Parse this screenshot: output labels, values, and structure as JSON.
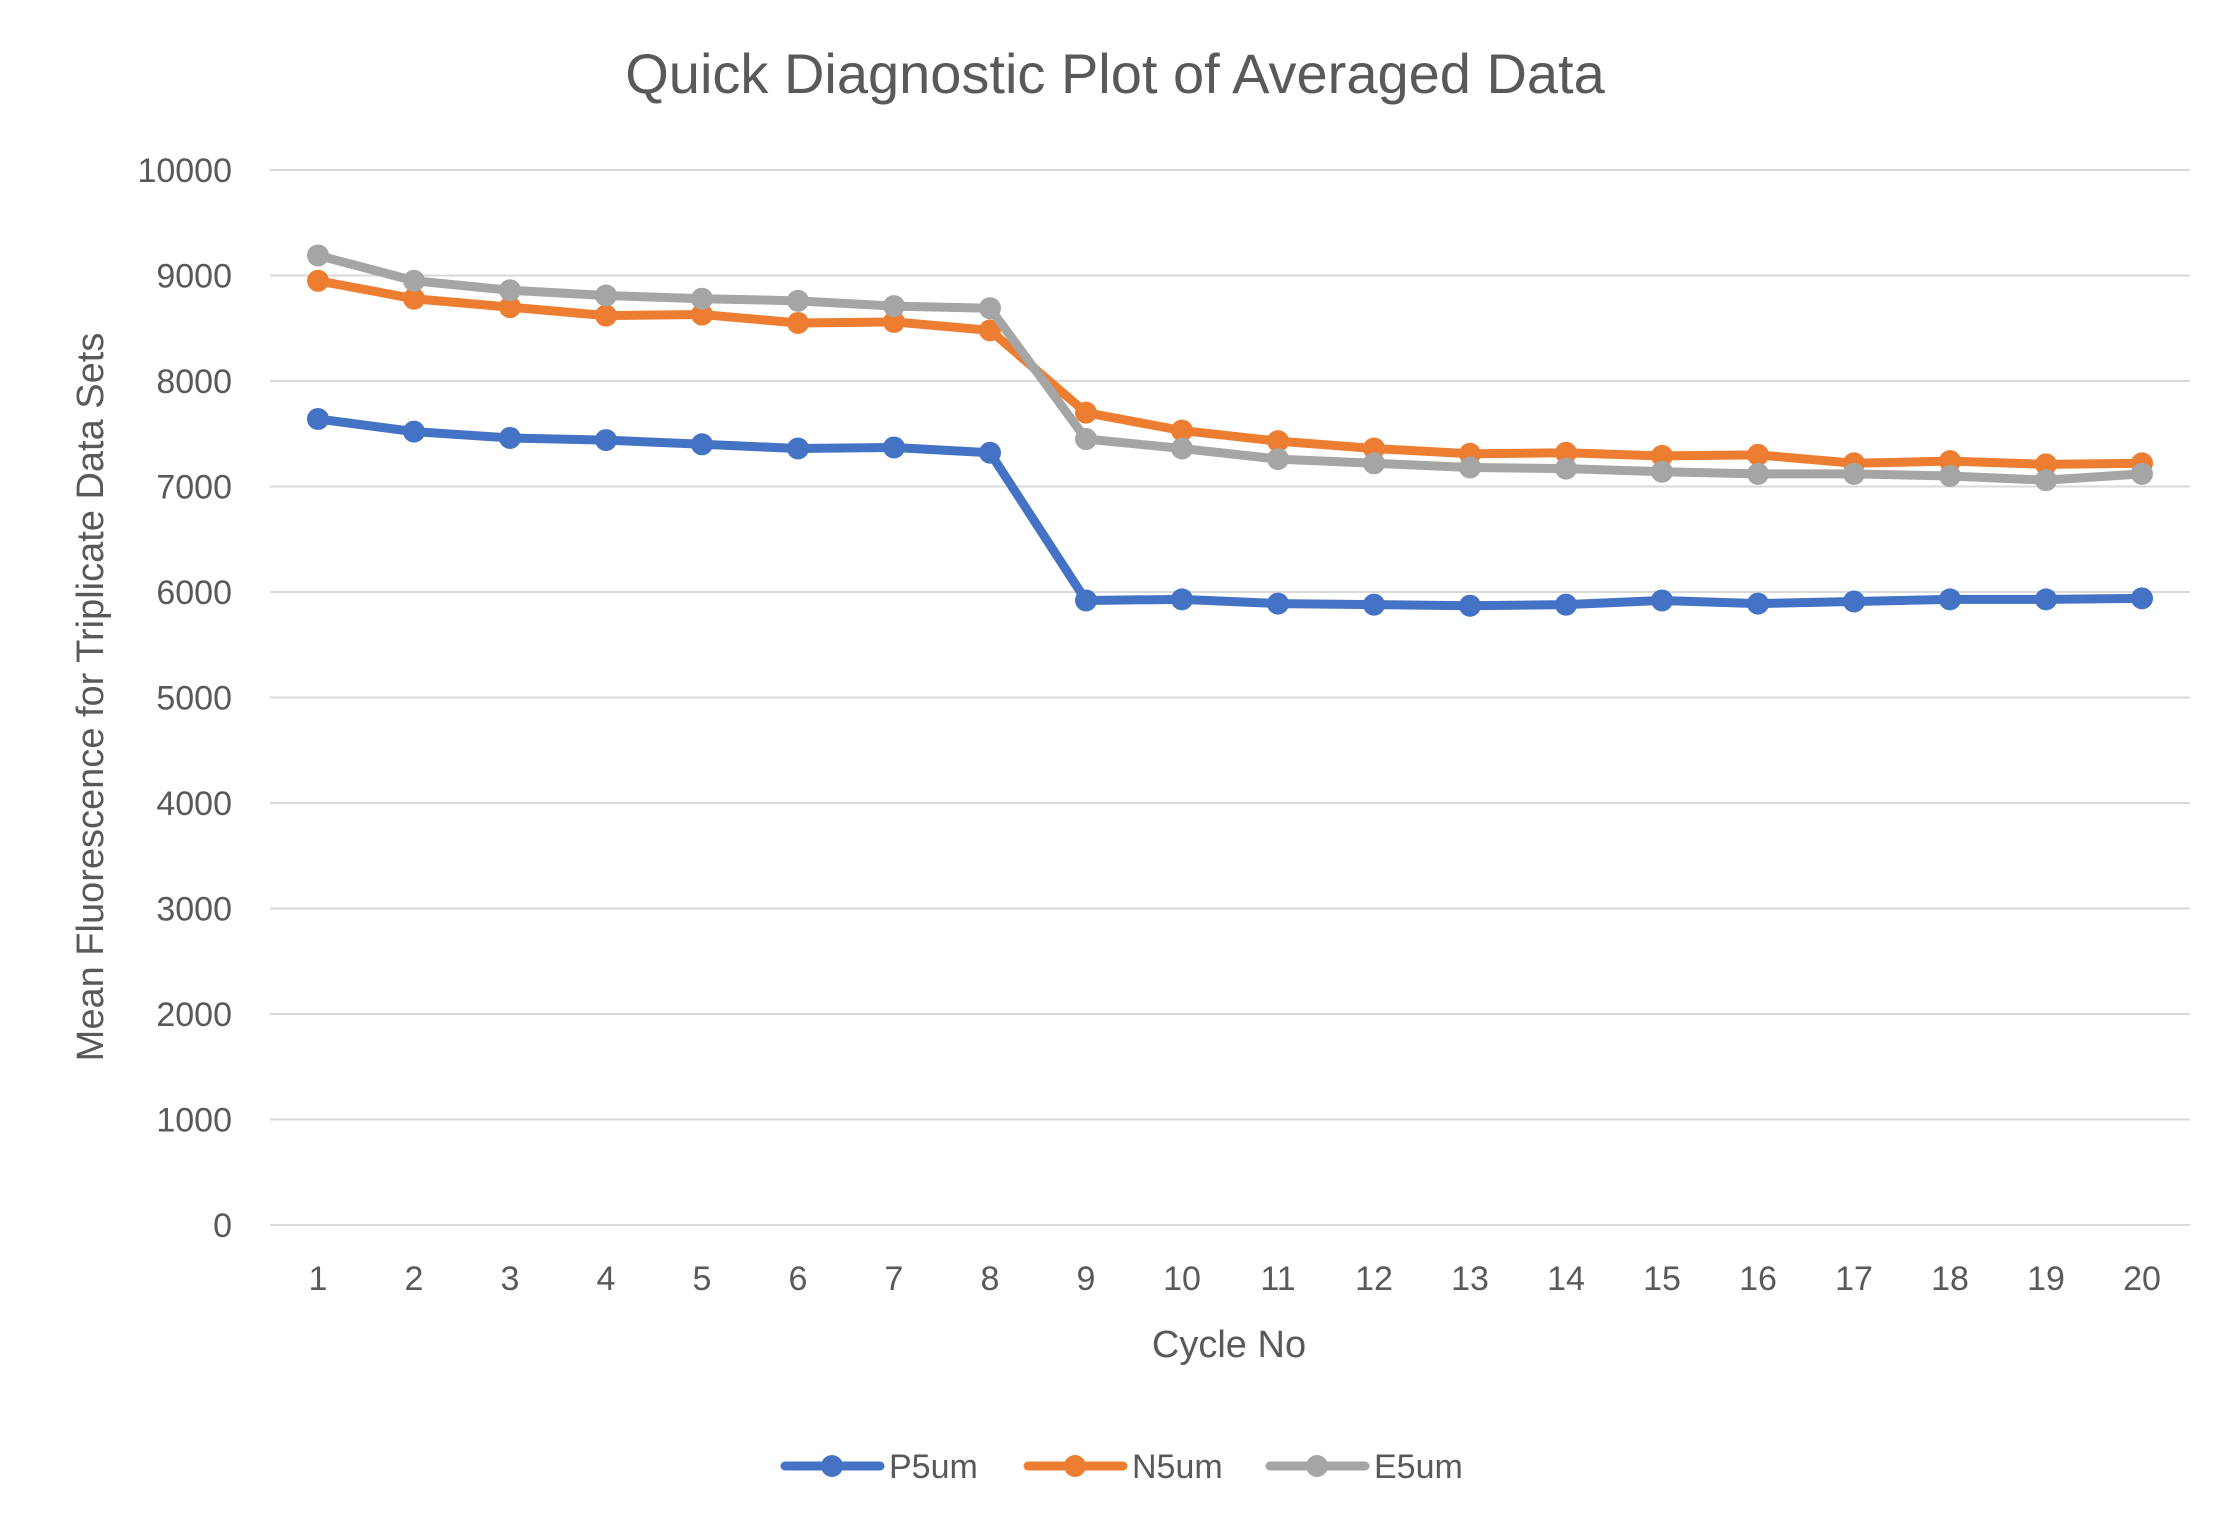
{
  "chart_data": {
    "type": "line",
    "title": "Quick Diagnostic Plot of Averaged Data",
    "xlabel": "Cycle No",
    "ylabel": "Mean Fluorescence for Triplicate Data Sets",
    "categories": [
      "1",
      "2",
      "3",
      "4",
      "5",
      "6",
      "7",
      "8",
      "9",
      "10",
      "11",
      "12",
      "13",
      "14",
      "15",
      "16",
      "17",
      "18",
      "19",
      "20"
    ],
    "ylim": [
      0,
      10000
    ],
    "yticks": [
      "0",
      "1000",
      "2000",
      "3000",
      "4000",
      "5000",
      "6000",
      "7000",
      "8000",
      "9000",
      "10000"
    ],
    "grid": true,
    "legend_position": "bottom",
    "series": [
      {
        "name": "P5um",
        "color": "#4472C4",
        "values": [
          7640,
          7520,
          7460,
          7440,
          7400,
          7360,
          7370,
          7320,
          5920,
          5930,
          5890,
          5880,
          5870,
          5880,
          5920,
          5890,
          5910,
          5930,
          5930,
          5940
        ]
      },
      {
        "name": "N5um",
        "color": "#ED7D31",
        "values": [
          8950,
          8780,
          8700,
          8620,
          8630,
          8550,
          8560,
          8480,
          7700,
          7530,
          7430,
          7360,
          7310,
          7320,
          7290,
          7300,
          7220,
          7240,
          7210,
          7220
        ]
      },
      {
        "name": "E5um",
        "color": "#A5A5A5",
        "values": [
          9190,
          8950,
          8860,
          8810,
          8780,
          8760,
          8710,
          8690,
          7450,
          7360,
          7260,
          7220,
          7180,
          7170,
          7140,
          7120,
          7120,
          7100,
          7060,
          7120
        ]
      }
    ]
  }
}
